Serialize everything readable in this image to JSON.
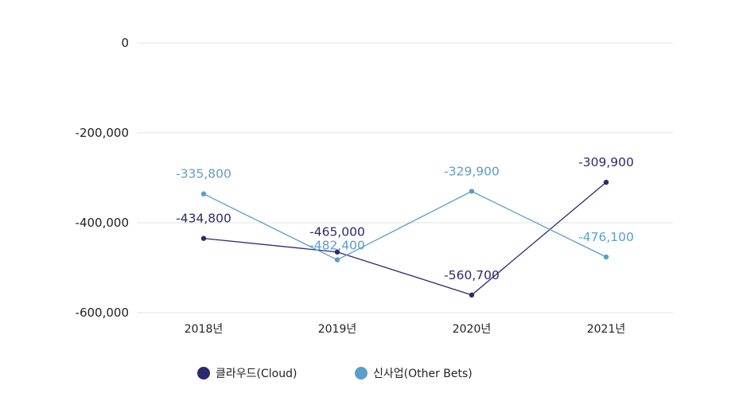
{
  "chart_data": {
    "type": "line",
    "categories": [
      "2018년",
      "2019년",
      "2020년",
      "2021년"
    ],
    "y_ticks": [
      0,
      -200000,
      -400000,
      -600000
    ],
    "y_tick_labels": [
      "0",
      "-200,000",
      "-400,000",
      "-600,000"
    ],
    "ylim": [
      -600000,
      0
    ],
    "grid": true,
    "legend_position": "bottom-center",
    "series": [
      {
        "name": "클라우드(Cloud)",
        "color": "#2b2a6e",
        "values": [
          -434800,
          -465000,
          -560700,
          -309900
        ],
        "labels": [
          "-434,800",
          "-465,000",
          "-560,700",
          "-309,900"
        ]
      },
      {
        "name": "신사업(Other Bets)",
        "color": "#5a9fc9",
        "values": [
          -335800,
          -482400,
          -329900,
          -476100
        ],
        "labels": [
          "-335,800",
          "-482,400",
          "-329,900",
          "-476,100"
        ]
      }
    ]
  }
}
